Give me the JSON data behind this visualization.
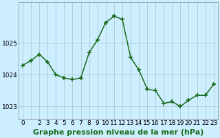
{
  "x": [
    0,
    1,
    2,
    3,
    4,
    5,
    6,
    7,
    8,
    9,
    10,
    11,
    12,
    13,
    14,
    15,
    16,
    17,
    18,
    19,
    20,
    21,
    22,
    23
  ],
  "y": [
    1024.3,
    1024.45,
    1024.65,
    1024.4,
    1024.0,
    1023.9,
    1023.85,
    1023.9,
    1024.7,
    1025.1,
    1025.65,
    1025.85,
    1025.75,
    1024.55,
    1024.15,
    1023.55,
    1023.5,
    1023.1,
    1023.15,
    1023.0,
    1023.2,
    1023.35,
    1023.35,
    1023.7
  ],
  "line_color": "#1a6b1a",
  "marker_color": "#1a6b1a",
  "bg_color": "#cceeff",
  "grid_color": "#aacccc",
  "xlabel": "Graphe pression niveau de la mer (hPa)",
  "xlabel_fontsize": 8,
  "ylim": [
    1022.6,
    1026.3
  ],
  "yticks": [
    1023,
    1024,
    1025
  ],
  "xtick_labels": [
    "0",
    "",
    "2",
    "3",
    "4",
    "5",
    "6",
    "7",
    "8",
    "9",
    "10",
    "11",
    "12",
    "13",
    "14",
    "15",
    "16",
    "17",
    "18",
    "19",
    "20",
    "21",
    "22",
    "23"
  ],
  "tick_fontsize": 6.5,
  "line_width": 1.1,
  "marker_size": 4
}
